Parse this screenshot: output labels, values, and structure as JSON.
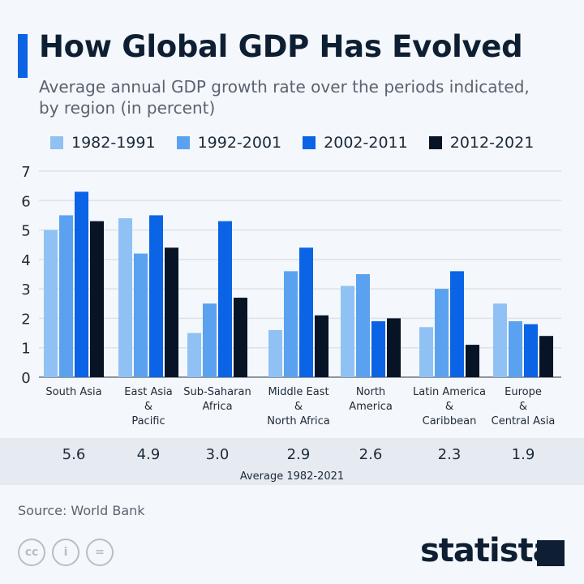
{
  "title": "How Global GDP Has Evolved",
  "subtitle": "Average annual GDP growth rate over the periods indicated, by region (in percent)",
  "source": "Source: World Bank",
  "brand": "statista",
  "icons": [
    "cc-icon",
    "attribution-icon",
    "no-derivatives-icon"
  ],
  "chart_data": {
    "type": "bar",
    "title": "How Global GDP Has Evolved",
    "ylim": [
      0,
      7
    ],
    "yticks": [
      "0",
      "1",
      "2",
      "3",
      "4",
      "5",
      "6",
      "7"
    ],
    "grid": true,
    "legend": "top",
    "categories": [
      [
        "South Asia"
      ],
      [
        "East Asia",
        "&",
        "Pacific"
      ],
      [
        "Sub-Saharan",
        "Africa"
      ],
      [
        "Middle East",
        "&",
        "North Africa"
      ],
      [
        "North",
        "America"
      ],
      [
        "Latin America",
        "&",
        "Caribbean"
      ],
      [
        "Europe",
        "&",
        "Central Asia"
      ]
    ],
    "series": [
      {
        "name": "1982-1991",
        "color": "#8fc1f5",
        "values": [
          5.0,
          5.4,
          1.5,
          1.6,
          3.1,
          1.7,
          2.5
        ]
      },
      {
        "name": "1992-2001",
        "color": "#5aa2ef",
        "values": [
          5.5,
          4.2,
          2.5,
          3.6,
          3.5,
          3.0,
          1.9
        ]
      },
      {
        "name": "2002-2011",
        "color": "#0b63e5",
        "values": [
          6.3,
          5.5,
          5.3,
          4.4,
          1.9,
          3.6,
          1.8
        ]
      },
      {
        "name": "2012-2021",
        "color": "#061426",
        "values": [
          5.3,
          4.4,
          2.7,
          2.1,
          2.0,
          1.1,
          1.4
        ]
      }
    ],
    "averages": {
      "label": "Average 1982-2021",
      "values": [
        "5.6",
        "4.9",
        "3.0",
        "2.9",
        "2.6",
        "2.3",
        "1.9"
      ]
    }
  }
}
